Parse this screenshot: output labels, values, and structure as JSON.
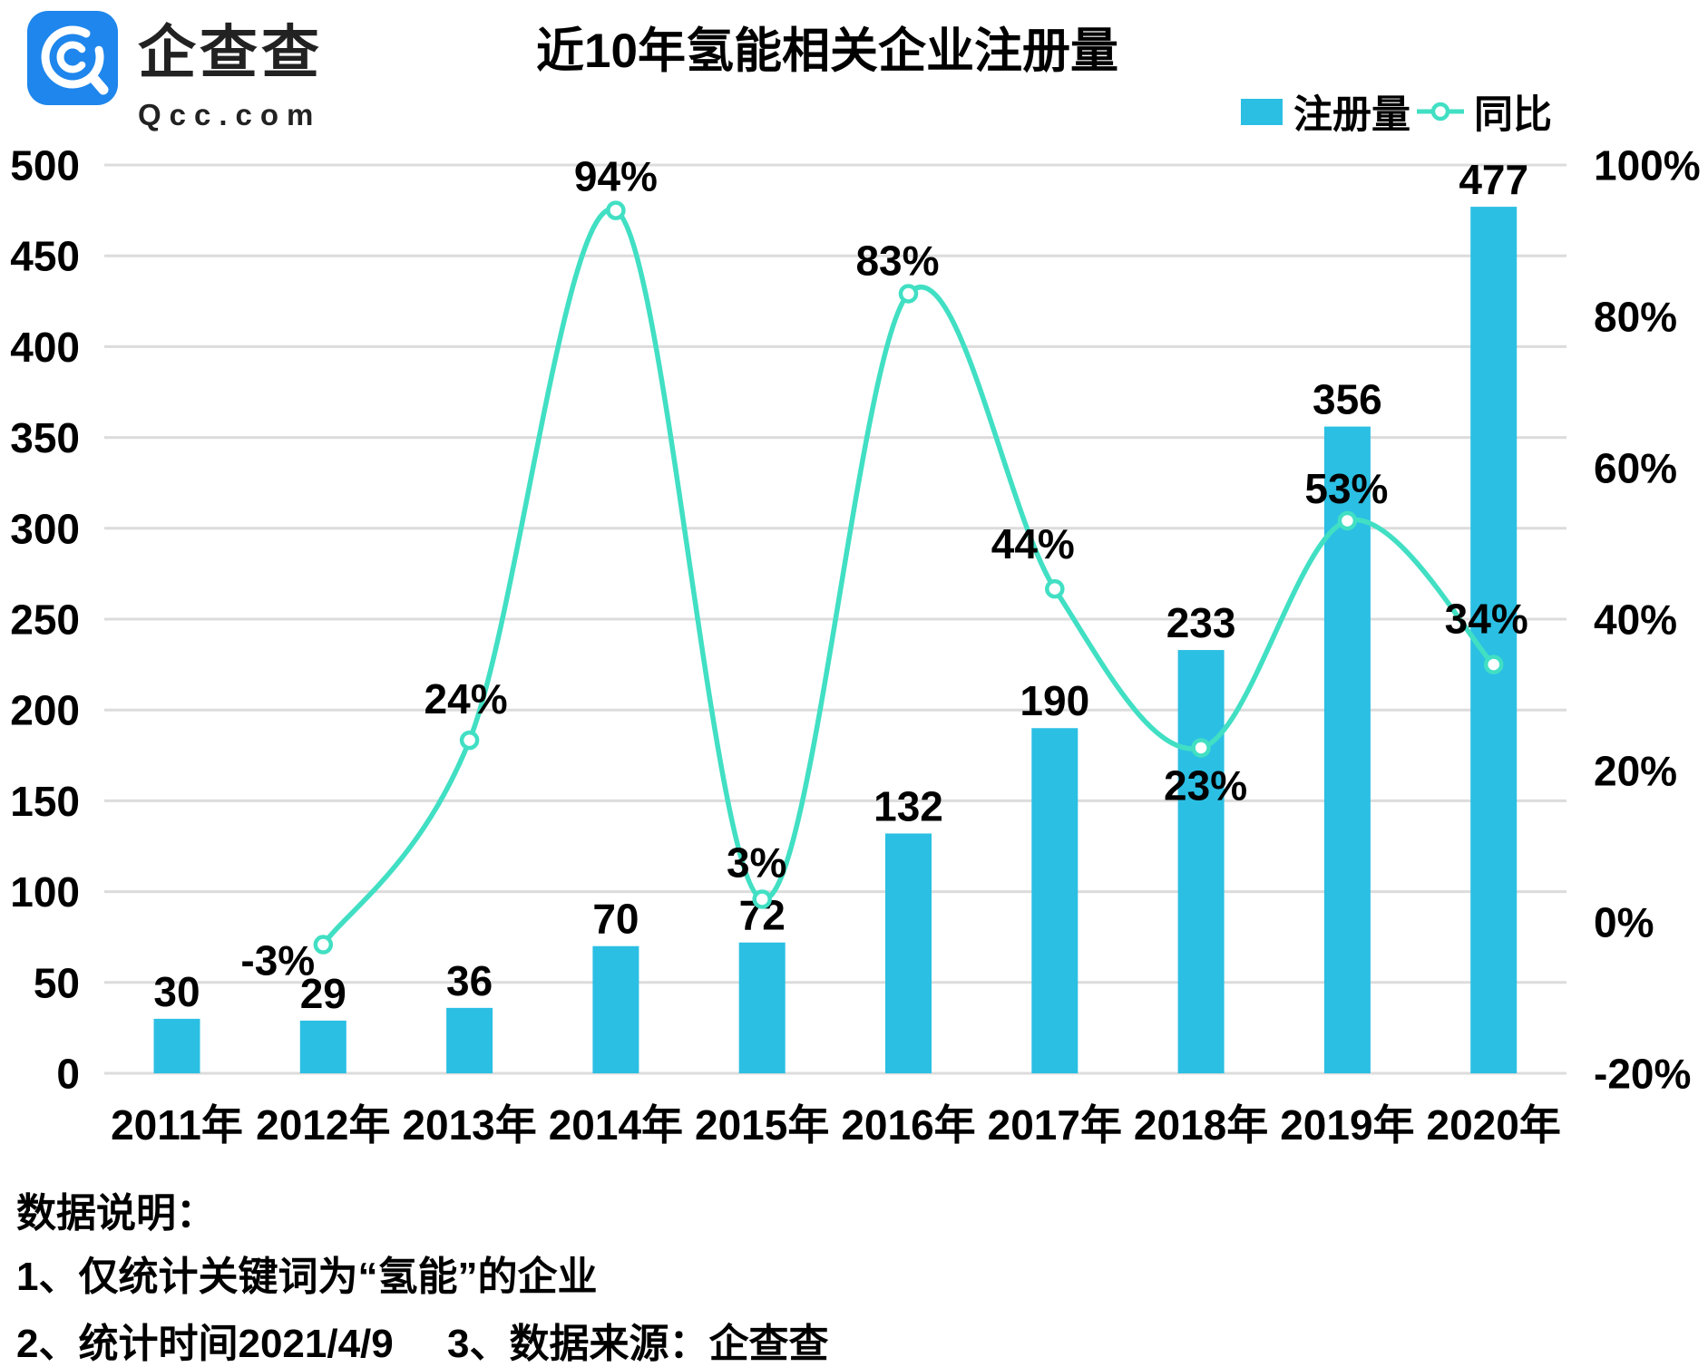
{
  "brand": {
    "name": "企查查",
    "domain": "Qcc.com"
  },
  "title": "近10年氢能相关企业注册量",
  "legend": {
    "bar_label": "注册量",
    "line_label": "同比"
  },
  "colors": {
    "bar": "#2BBFE3",
    "line": "#41DFC3",
    "grid": "#DCDCDC",
    "text": "#000000",
    "logo_blue": "#1E86EC"
  },
  "chart_data": {
    "type": "bar+line",
    "title": "近10年氢能相关企业注册量",
    "categories": [
      "2011年",
      "2012年",
      "2013年",
      "2014年",
      "2015年",
      "2016年",
      "2017年",
      "2018年",
      "2019年",
      "2020年"
    ],
    "series": [
      {
        "name": "注册量",
        "type": "bar",
        "axis": "left",
        "values": [
          30,
          29,
          36,
          70,
          72,
          132,
          190,
          233,
          356,
          477
        ],
        "value_labels": [
          "30",
          "29",
          "36",
          "70",
          "72",
          "132",
          "190",
          "233",
          "356",
          "477"
        ]
      },
      {
        "name": "同比",
        "type": "line",
        "axis": "right",
        "x_start_index": 1,
        "values_pct": [
          -3,
          24,
          94,
          3,
          83,
          44,
          23,
          53,
          34
        ],
        "point_labels": [
          "-3%",
          "24%",
          "94%",
          "3%",
          "83%",
          "44%",
          "23%",
          "53%",
          "34%"
        ],
        "label_offsets": [
          [
            -50,
            17
          ],
          [
            -4,
            -46
          ],
          [
            0,
            -38
          ],
          [
            -6,
            -41
          ],
          [
            -12,
            -37
          ],
          [
            -24,
            -50
          ],
          [
            5,
            41
          ],
          [
            -1,
            -36
          ],
          [
            -8,
            -51
          ]
        ]
      }
    ],
    "left_axis": {
      "min": 0,
      "max": 500,
      "step": 50,
      "ticks": [
        "0",
        "50",
        "100",
        "150",
        "200",
        "250",
        "300",
        "350",
        "400",
        "450",
        "500"
      ]
    },
    "right_axis": {
      "min": -20,
      "max": 100,
      "step": 20,
      "ticks": [
        "-20%",
        "0%",
        "20%",
        "40%",
        "60%",
        "80%",
        "100%"
      ]
    },
    "grid": true,
    "legend_position": "top-right",
    "marker_style": "open-circle"
  },
  "footer": {
    "heading": "数据说明：",
    "note1": "1、仅统计关键词为“氢能”的企业",
    "note2": "2、统计时间2021/4/9",
    "note3": "3、数据来源：企查查"
  }
}
